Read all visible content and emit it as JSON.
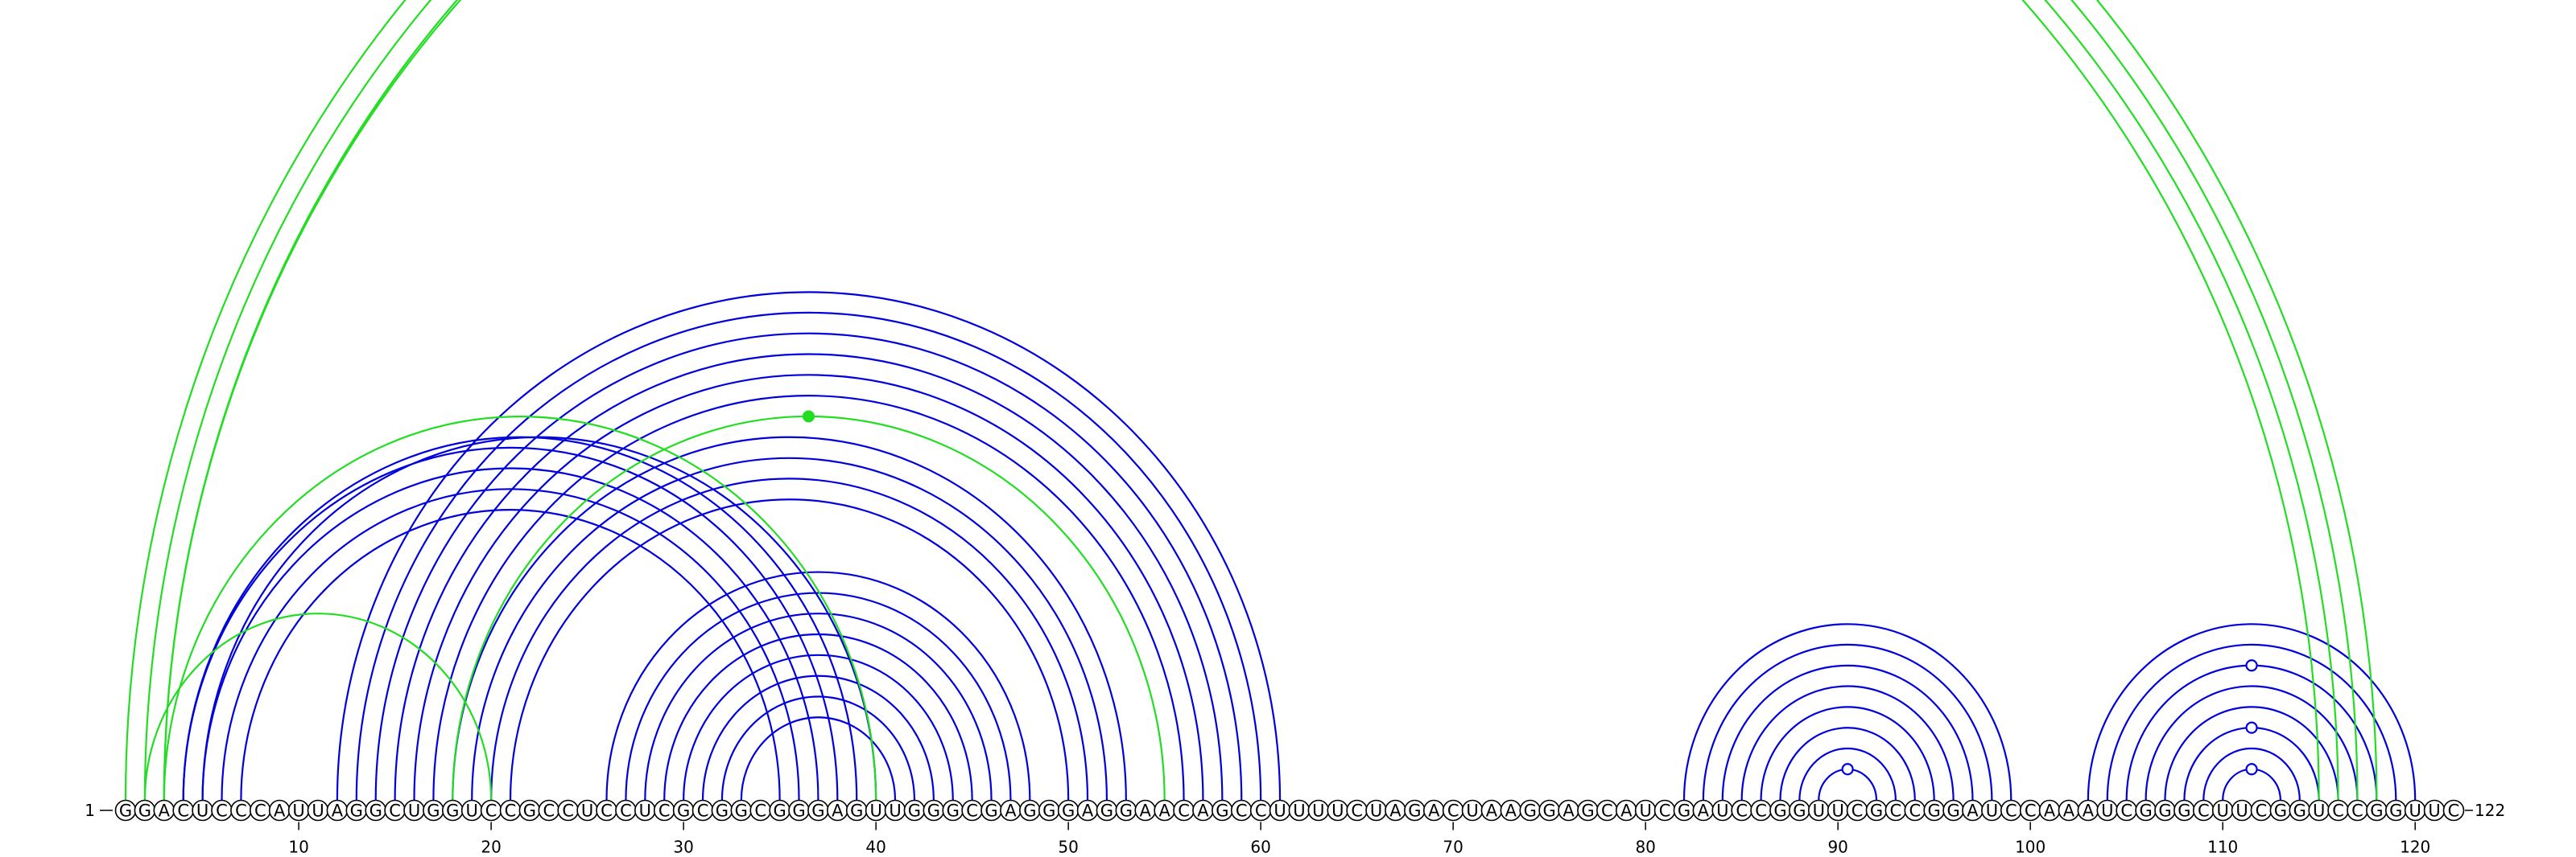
{
  "sequence": "GGACUCCCAUUAGGCUGGUCCGCCUCCUCGCGGCGGGAGUUGGGCGAGGGAGGAACAGCCUUUUCUAGACUAAGGAGCAUCGAUCCGGUUCGCCGGAUCCAAAUCGGGCUUCGGUCCGGUUC",
  "start_label": "1",
  "end_label": "122",
  "ticks": [
    10,
    20,
    30,
    40,
    50,
    60,
    70,
    80,
    90,
    100,
    110,
    120
  ],
  "colors": {
    "blue": "#0000dd",
    "green": "#22dd22"
  },
  "arcs": {
    "blue": [
      [
        4,
        38
      ],
      [
        5,
        37
      ],
      [
        6,
        36
      ],
      [
        7,
        35
      ],
      [
        4,
        39
      ],
      [
        5,
        40
      ],
      [
        12,
        61
      ],
      [
        13,
        60
      ],
      [
        14,
        59
      ],
      [
        15,
        58
      ],
      [
        16,
        57
      ],
      [
        17,
        56
      ],
      [
        18,
        53
      ],
      [
        19,
        52
      ],
      [
        20,
        51
      ],
      [
        21,
        50
      ],
      [
        26,
        48
      ],
      [
        27,
        47
      ],
      [
        28,
        46
      ],
      [
        29,
        45
      ],
      [
        30,
        44
      ],
      [
        31,
        43
      ],
      [
        32,
        42
      ],
      [
        33,
        41
      ],
      [
        82,
        99
      ],
      [
        83,
        98
      ],
      [
        84,
        97
      ],
      [
        85,
        96
      ],
      [
        86,
        95
      ],
      [
        87,
        94
      ],
      [
        88,
        93
      ],
      [
        89,
        92
      ],
      [
        103,
        120
      ],
      [
        104,
        119
      ],
      [
        105,
        118
      ],
      [
        106,
        117
      ],
      [
        107,
        116
      ],
      [
        108,
        115
      ],
      [
        109,
        114
      ],
      [
        110,
        113
      ]
    ],
    "green": [
      [
        1,
        118
      ],
      [
        2,
        117
      ],
      [
        3,
        116
      ],
      [
        3,
        115
      ],
      [
        3,
        40
      ],
      [
        2,
        20
      ],
      [
        18,
        55
      ]
    ]
  },
  "markers": {
    "open_circles": [
      {
        "a": 110,
        "b": 113
      },
      {
        "a": 89,
        "b": 92
      },
      {
        "a": 108,
        "b": 115
      },
      {
        "a": 105,
        "b": 118
      }
    ],
    "filled_circles": [
      {
        "a": 18,
        "b": 55
      }
    ]
  }
}
